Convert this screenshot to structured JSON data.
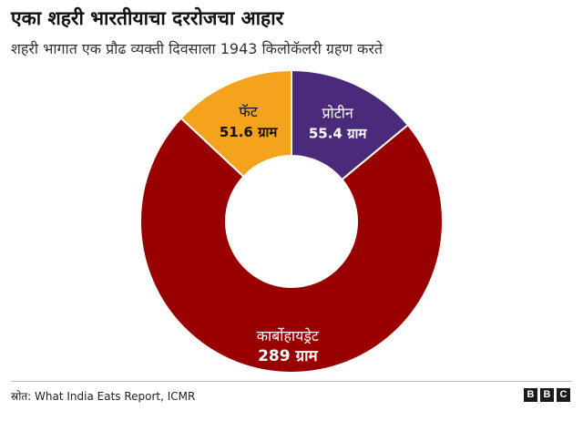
{
  "header": {
    "title": "एका शहरी भारतीयाचा दररोजचा आहार",
    "subtitle": "शहरी भागात एक प्रौढ व्यक्ती दिवसाला 1943 किलोकॅलरी ग्रहण करते"
  },
  "chart_data": {
    "type": "pie",
    "variant": "donut",
    "categories": [
      "प्रोटीन",
      "कार्बोहायड्रेट",
      "फॅट"
    ],
    "values": [
      55.4,
      289,
      51.6
    ],
    "value_labels": [
      "55.4 ग्राम",
      "289 ग्राम",
      "51.6 ग्राम"
    ],
    "colors": [
      "#4b2a7c",
      "#990000",
      "#f5a21d"
    ],
    "label_colors": [
      "#ffffff",
      "#ffffff",
      "#111111"
    ],
    "start_angle_deg": 0,
    "direction": "clockwise",
    "legend": "none"
  },
  "footer": {
    "source": "स्रोत: What India Eats Report, ICMR",
    "logo_letters": [
      "B",
      "B",
      "C"
    ]
  }
}
